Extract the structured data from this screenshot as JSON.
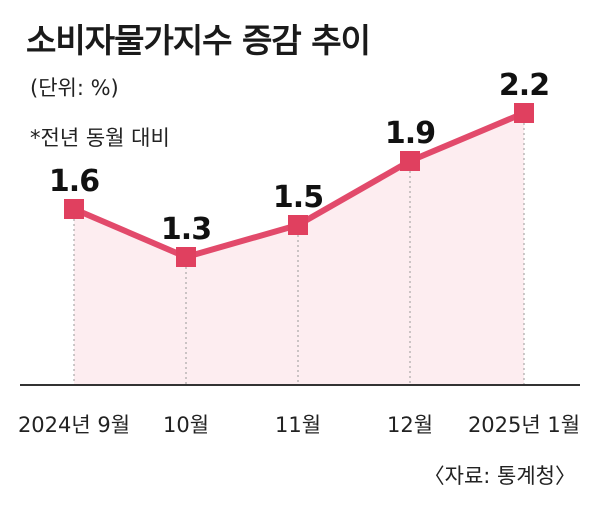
{
  "title": "소비자물가지수 증감 추이",
  "unit": "(단위: %)",
  "note": "*전년 동월 대비",
  "source": "〈자료: 통계청〉",
  "colors": {
    "line": "#e24a6b",
    "marker": "#e0405f",
    "fill": "#fde9ec",
    "axis": "#333333",
    "dashed": "#999999"
  },
  "chart_data": {
    "type": "line",
    "title": "소비자물가지수 증감 추이",
    "ylabel": "(단위: %)",
    "categories": [
      "2024년 9월",
      "10월",
      "11월",
      "12월",
      "2025년 1월"
    ],
    "values": [
      1.6,
      1.3,
      1.5,
      1.9,
      2.2
    ],
    "data_labels": [
      "1.6",
      "1.3",
      "1.5",
      "1.9",
      "2.2"
    ],
    "ylim": [
      0,
      2.5
    ],
    "grid": false,
    "area_fill": true
  }
}
